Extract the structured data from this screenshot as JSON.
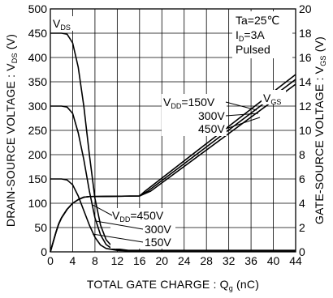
{
  "chart_data": {
    "type": "line",
    "xlabel": "TOTAL GATE CHARGE : Q",
    "xlabel_sub": "g",
    "xlabel_unit": "(nC)",
    "ylabel_left": "DRAIN-SOURCE VOLTAGE : V",
    "ylabel_left_sub": "DS",
    "ylabel_left_unit": "(V)",
    "ylabel_right": "GATE-SOURCE VOLTAGE : V",
    "ylabel_right_sub": "GS",
    "ylabel_right_unit": "(V)",
    "xlim": [
      0,
      44
    ],
    "ylim_left": [
      0,
      500
    ],
    "ylim_right": [
      0,
      20
    ],
    "x_ticks": [
      "0",
      "4",
      "8",
      "12",
      "16",
      "20",
      "24",
      "28",
      "32",
      "36",
      "40",
      "44"
    ],
    "y_left_ticks": [
      "0",
      "50",
      "100",
      "150",
      "200",
      "250",
      "300",
      "350",
      "400",
      "450",
      "500"
    ],
    "y_right_ticks": [
      "0",
      "2",
      "4",
      "6",
      "8",
      "10",
      "12",
      "14",
      "16",
      "18",
      "20"
    ],
    "grid": true,
    "conditions": {
      "ta": "Ta=25℃",
      "id_name": "I",
      "id_sub": "D",
      "id_value": "=3A",
      "mode": "Pulsed"
    },
    "labels": {
      "vds_main": "V",
      "vds_sub": "DS",
      "vgs_main": "V",
      "vgs_sub": "GS",
      "vdd_top_main": "V",
      "vdd_top_sub": "DD",
      "vdd_top_value": "=150V",
      "vdd_top_2": "300V",
      "vdd_top_3": "450V",
      "vdd_bot_main": "V",
      "vdd_bot_sub": "DD",
      "vdd_bot_value": "=450V",
      "vdd_bot_2": "300V",
      "vdd_bot_3": "150V"
    },
    "series": [
      {
        "axis": "left",
        "vdd": 450,
        "x": [
          0,
          2,
          3,
          4,
          5,
          6,
          7,
          8,
          9,
          10,
          11,
          12,
          14,
          44
        ],
        "y": [
          450,
          450,
          448,
          430,
          380,
          300,
          200,
          110,
          55,
          25,
          12,
          6,
          3,
          3
        ]
      },
      {
        "axis": "left",
        "vdd": 300,
        "x": [
          0,
          2,
          3,
          4,
          5,
          6,
          7,
          8,
          9,
          10,
          11,
          12,
          14,
          44
        ],
        "y": [
          300,
          300,
          298,
          285,
          245,
          190,
          125,
          70,
          35,
          15,
          7,
          4,
          2,
          2
        ]
      },
      {
        "axis": "left",
        "vdd": 150,
        "x": [
          0,
          2,
          3,
          4,
          5,
          6,
          7,
          8,
          9,
          10,
          12,
          14,
          44
        ],
        "y": [
          150,
          150,
          148,
          138,
          115,
          85,
          55,
          30,
          14,
          7,
          3,
          2,
          2
        ]
      },
      {
        "axis": "right",
        "vdd": 150,
        "x": [
          0,
          0.5,
          1,
          1.5,
          2,
          3,
          4,
          5,
          6,
          7,
          16,
          17,
          44
        ],
        "y": [
          0,
          0.8,
          1.6,
          2.3,
          2.8,
          3.5,
          4.0,
          4.3,
          4.5,
          4.55,
          4.6,
          5.0,
          14.6
        ]
      },
      {
        "axis": "right",
        "vdd": 300,
        "x": [
          0,
          0.5,
          1,
          1.5,
          2,
          3,
          4,
          5,
          6,
          7,
          16,
          17.5,
          44
        ],
        "y": [
          0,
          0.8,
          1.6,
          2.3,
          2.8,
          3.5,
          4.0,
          4.3,
          4.5,
          4.55,
          4.6,
          5.0,
          14.2
        ]
      },
      {
        "axis": "right",
        "vdd": 450,
        "x": [
          0,
          0.5,
          1,
          1.5,
          2,
          3,
          4,
          5,
          6,
          7,
          16,
          18,
          44
        ],
        "y": [
          0,
          0.8,
          1.6,
          2.3,
          2.8,
          3.5,
          4.0,
          4.3,
          4.5,
          4.55,
          4.6,
          5.0,
          13.8
        ]
      }
    ]
  }
}
